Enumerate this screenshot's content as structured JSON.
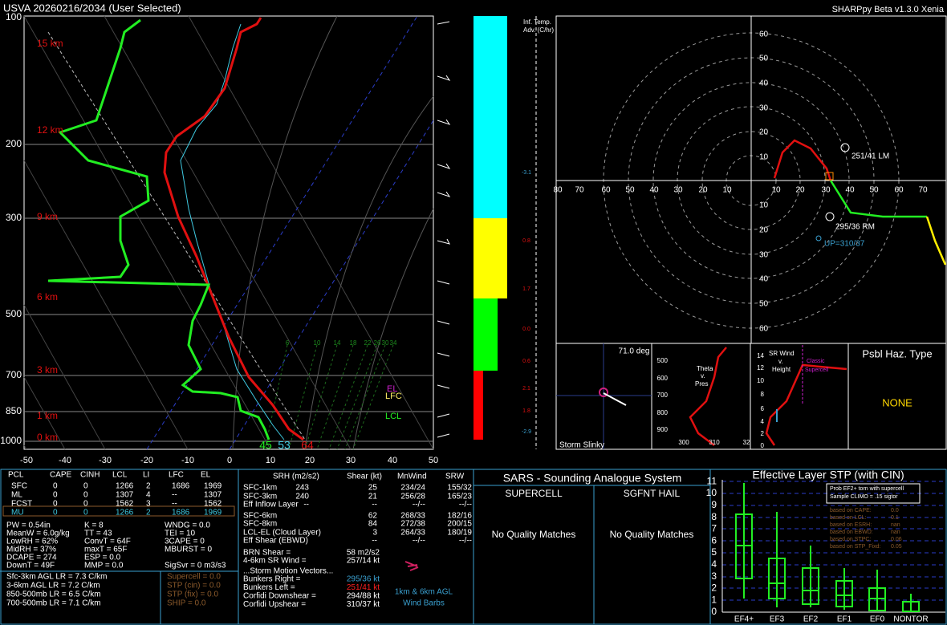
{
  "header": {
    "title": "USVA  20260216/2034  (User Selected)",
    "version": "SHARPpy Beta v1.3.0 Xenia"
  },
  "skewt": {
    "pressure_labels": [
      "100",
      "200",
      "300",
      "500",
      "700",
      "850",
      "1000"
    ],
    "height_labels": [
      "15 km",
      "12 km",
      "9 km",
      "6 km",
      "3 km",
      "1 km",
      "0 km"
    ],
    "temp_ticks": [
      "-50",
      "-40",
      "-30",
      "-20",
      "-10",
      "0",
      "10",
      "20",
      "30",
      "40",
      "50"
    ],
    "mixing_ratio_labels": [
      "6",
      "10",
      "14",
      "18",
      "22",
      "26",
      "30",
      "34"
    ],
    "surface": {
      "dewpoint": "45",
      "wetbulb": "53",
      "temperature": "64"
    },
    "parcel_levels": {
      "el": "EL",
      "lfc": "LFC",
      "lcl": "LCL"
    }
  },
  "temp_advection": {
    "title": [
      "Inf. Temp.",
      "Adv. (C/hr)"
    ],
    "values": [
      "-3.1",
      "0.8",
      "1.7",
      "0.0",
      "0.6",
      "2.1",
      "1.8",
      "-2.9"
    ]
  },
  "hodograph": {
    "rings_up": [
      "60",
      "50",
      "40",
      "30",
      "20",
      "10"
    ],
    "rings_down": [
      "10",
      "20",
      "30",
      "40",
      "50",
      "60"
    ],
    "rings_left": [
      "80",
      "70",
      "60",
      "50",
      "40",
      "30",
      "20",
      "10"
    ],
    "rings_right": [
      "10",
      "20",
      "30",
      "40",
      "50",
      "60",
      "70"
    ],
    "left_mover": "251/41 LM",
    "right_mover": "295/36 RM",
    "upshear": "UP=310/37"
  },
  "slinky": {
    "angle": "71.0 deg",
    "title": "Storm Slinky"
  },
  "theta_e": {
    "title": [
      "Theta",
      "v.",
      "Pres"
    ],
    "pressures": [
      "500",
      "600",
      "700",
      "800",
      "900"
    ],
    "thetas": [
      "300",
      "310",
      "32"
    ]
  },
  "sr_wind": {
    "title": [
      "SR Wind",
      "v.",
      "Height"
    ],
    "classic": [
      "Classic",
      "Supercell"
    ],
    "heights": [
      "14",
      "12",
      "10",
      "8",
      "6",
      "4",
      "2",
      "0"
    ]
  },
  "hazard": {
    "title": "Psbl Haz. Type",
    "value": "NONE"
  },
  "parcels": {
    "header": [
      "PCL",
      "CAPE",
      "CINH",
      "LCL",
      "LI",
      "LFC",
      "EL"
    ],
    "rows": [
      [
        "SFC",
        "0",
        "0",
        "1266",
        "2",
        "1686",
        "1969"
      ],
      [
        "ML",
        "0",
        "0",
        "1307",
        "4",
        "--",
        "1307"
      ],
      [
        "FCST",
        "0",
        "0",
        "1562",
        "3",
        "--",
        "1562"
      ],
      [
        "MU",
        "0",
        "0",
        "1266",
        "2",
        "1686",
        "1969"
      ]
    ]
  },
  "indices": [
    [
      "PW = 0.54in",
      "K = 8",
      "WNDG = 0.0"
    ],
    [
      "MeanW = 6.0g/kg",
      "TT = 43",
      "TEI = 10"
    ],
    [
      "LowRH = 62%",
      "ConvT = 64F",
      "3CAPE = 0"
    ],
    [
      "MidRH = 37%",
      "maxT = 65F",
      "MBURST = 0"
    ],
    [
      "DCAPE = 274",
      "ESP = 0.0"
    ],
    [
      "DownT = 49F",
      "MMP = 0.0",
      "SigSvr = 0 m3/s3"
    ]
  ],
  "lapse_rates": [
    "Sfc-3km AGL LR = 7.3 C/km",
    "3-6km AGL LR = 7.2 C/km",
    "850-500mb LR = 6.5 C/km",
    "700-500mb LR = 7.1 C/km"
  ],
  "composites": [
    "Supercell = 0.0",
    "STP (cin) = 0.0",
    "STP (fix) = 0.0",
    "SHIP = 0.0"
  ],
  "kinematics": {
    "header": [
      "SRH (m2/s2)",
      "Shear (kt)",
      "MnWind",
      "SRW"
    ],
    "rows": [
      {
        "label": "SFC-1km",
        "srh": "243",
        "shear": "25",
        "mnwind": "234/24",
        "srw": "155/32"
      },
      {
        "label": "SFC-3km",
        "srh": "240",
        "shear": "21",
        "mnwind": "256/28",
        "srw": "165/23"
      },
      {
        "label": "Eff Inflow Layer",
        "srh": "--",
        "shear": "--",
        "mnwind": "--/--",
        "srw": "--/--"
      },
      {
        "label": "SFC-6km",
        "shear": "62",
        "mnwind": "268/33",
        "srw": "182/16"
      },
      {
        "label": "SFC-8km",
        "shear": "84",
        "mnwind": "272/38",
        "srw": "200/15"
      },
      {
        "label": "LCL-EL (Cloud Layer)",
        "shear": "3",
        "mnwind": "264/33",
        "srw": "180/19"
      },
      {
        "label": "Eff Shear (EBWD)",
        "shear": "--",
        "mnwind": "--/--",
        "srw": "--/--"
      }
    ],
    "brn": [
      [
        "BRN Shear =",
        "58 m2/s2"
      ],
      [
        "4-6km SR Wind =",
        "257/14 kt"
      ]
    ],
    "storm_motion_title": "...Storm Motion Vectors...",
    "storm_motion": [
      [
        "Bunkers Right =",
        "295/36 kt"
      ],
      [
        "Bunkers Left =",
        "251/41 kt"
      ],
      [
        "Corfidi Downshear =",
        "294/88 kt"
      ],
      [
        "Corfidi Upshear =",
        "310/37 kt"
      ]
    ],
    "barb_caption": [
      "1km & 6km AGL",
      "Wind Barbs"
    ]
  },
  "sars": {
    "title": "SARS - Sounding Analogue System",
    "supercell": {
      "title": "SUPERCELL",
      "result": "No Quality Matches"
    },
    "hail": {
      "title": "SGFNT HAIL",
      "result": "No Quality Matches"
    }
  },
  "stp": {
    "title": "Effective Layer STP (with CIN)",
    "yticks": [
      "0",
      "1",
      "2",
      "3",
      "4",
      "5",
      "6",
      "7",
      "8",
      "9",
      "10",
      "11"
    ],
    "categories": [
      "EF4+",
      "EF3",
      "EF2",
      "EF1",
      "EF0",
      "NONTOR"
    ],
    "legend": [
      "Prob EF2+ torn with supercell",
      "Sample CLIMO = .15 sigtor"
    ],
    "based_on": [
      [
        "based on CAPE:",
        "0.0"
      ],
      [
        "based on LCL:",
        "0.1"
      ],
      [
        "based on ESRH:",
        "nan"
      ],
      [
        "based on EBWD:",
        "nan"
      ],
      [
        "based on STPC:",
        "0.06"
      ],
      [
        "based on STP_Fixd:",
        "0.05"
      ]
    ]
  }
}
